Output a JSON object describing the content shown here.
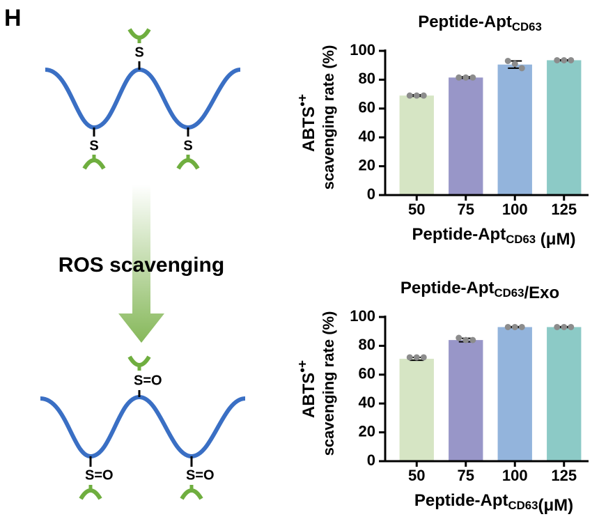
{
  "diagram": {
    "panel": "H",
    "arrow_label": "ROS scavenging",
    "top_labels": [
      "S",
      "S",
      "S"
    ],
    "bottom_labels": [
      "S=O",
      "S=O",
      "S=O"
    ]
  },
  "chart_data": [
    {
      "type": "bar",
      "title": [
        {
          "text": "Peptide-Apt"
        },
        {
          "text": "CD63",
          "sub": true
        }
      ],
      "ylabel": [
        {
          "text": "ABTS"
        },
        {
          "text": "•+",
          "sup": true
        }
      ],
      "ylabel2": "scavenging rate (%)",
      "xlabel": [
        {
          "text": "Peptide-Apt"
        },
        {
          "text": "CD63",
          "sub": true
        },
        {
          "text": " (μM)"
        }
      ],
      "categories": [
        "50",
        "75",
        "100",
        "125"
      ],
      "values": [
        69,
        81.5,
        90.5,
        93.5
      ],
      "errors": [
        0.5,
        0.5,
        2.5,
        0.3
      ],
      "points": [
        [
          69,
          69,
          69
        ],
        [
          81.5,
          81.5,
          81.5
        ],
        [
          93,
          91,
          88
        ],
        [
          93.5,
          93.5,
          93.5
        ]
      ],
      "colors": [
        "#d6e5c4",
        "#9896c8",
        "#93b4dc",
        "#8ccac6"
      ],
      "point_color": "#8c8c8c",
      "ylim": [
        0,
        100
      ],
      "yticks": [
        0,
        20,
        40,
        60,
        80,
        100
      ]
    },
    {
      "type": "bar",
      "title": [
        {
          "text": "Peptide-Apt"
        },
        {
          "text": "CD63",
          "sub": true
        },
        {
          "text": "/Exo"
        }
      ],
      "ylabel": [
        {
          "text": "ABTS"
        },
        {
          "text": "•+",
          "sup": true
        }
      ],
      "ylabel2": "scavenging  rate (%)",
      "xlabel": [
        {
          "text": "Peptide-Apt"
        },
        {
          "text": "CD63",
          "sub": true
        },
        {
          "text": "(μM)"
        }
      ],
      "categories": [
        "50",
        "75",
        "100",
        "125"
      ],
      "values": [
        71,
        84,
        93,
        93
      ],
      "errors": [
        1,
        1.2,
        0.3,
        0.3
      ],
      "points": [
        [
          72,
          72,
          72
        ],
        [
          85.5,
          84,
          84
        ],
        [
          93,
          93,
          93
        ],
        [
          93,
          93,
          93
        ]
      ],
      "colors": [
        "#d6e5c4",
        "#9896c8",
        "#93b4dc",
        "#8ccac6"
      ],
      "point_color": "#8c8c8c",
      "ylim": [
        0,
        100
      ],
      "yticks": [
        0,
        20,
        40,
        60,
        80,
        100
      ]
    }
  ]
}
